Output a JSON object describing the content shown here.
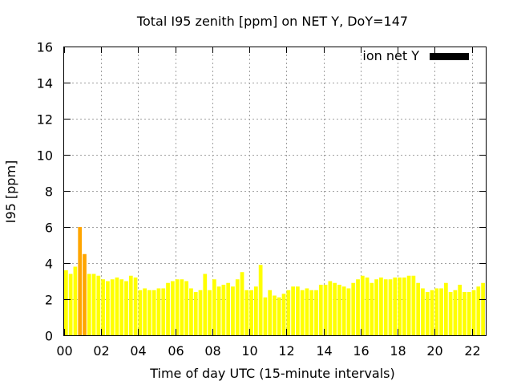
{
  "chart_data": {
    "type": "bar",
    "title": "Total I95 zenith [ppm] on NET Y, DoY=147",
    "xlabel": "Time of day UTC (15-minute intervals)",
    "ylabel": "I95 [ppm]",
    "xlim": [
      0,
      22.75
    ],
    "ylim": [
      0,
      16
    ],
    "x_ticks": [
      0,
      2,
      4,
      6,
      8,
      10,
      12,
      14,
      16,
      18,
      20,
      22
    ],
    "x_tick_labels": [
      "00",
      "02",
      "04",
      "06",
      "08",
      "10",
      "12",
      "14",
      "16",
      "18",
      "20",
      "22"
    ],
    "y_ticks": [
      0,
      2,
      4,
      6,
      8,
      10,
      12,
      14,
      16
    ],
    "y_tick_labels": [
      "0",
      "2",
      "4",
      "6",
      "8",
      "10",
      "12",
      "14",
      "16"
    ],
    "grid": true,
    "legend_position": "top-right",
    "legend": [
      {
        "label": "ion net Y",
        "color": "#000000"
      }
    ],
    "colors": {
      "normal": "#ffff00",
      "elevated": "#ffa500"
    },
    "threshold_elevated": 4.2,
    "interval_hours": 0.25,
    "values": [
      3.6,
      3.4,
      3.8,
      6.0,
      4.5,
      3.4,
      3.4,
      3.3,
      3.1,
      3.0,
      3.1,
      3.2,
      3.1,
      3.0,
      3.3,
      3.2,
      2.5,
      2.6,
      2.5,
      2.5,
      2.6,
      2.6,
      2.9,
      3.0,
      3.1,
      3.1,
      3.0,
      2.6,
      2.4,
      2.5,
      3.4,
      2.5,
      3.1,
      2.7,
      2.8,
      2.9,
      2.7,
      3.1,
      3.5,
      2.5,
      2.5,
      2.7,
      3.9,
      2.1,
      2.5,
      2.2,
      2.1,
      2.3,
      2.5,
      2.7,
      2.7,
      2.5,
      2.6,
      2.5,
      2.5,
      2.8,
      2.8,
      3.0,
      2.9,
      2.8,
      2.7,
      2.6,
      2.9,
      3.1,
      3.3,
      3.2,
      2.9,
      3.1,
      3.2,
      3.1,
      3.1,
      3.2,
      3.2,
      3.2,
      3.3,
      3.3,
      2.9,
      2.6,
      2.4,
      2.5,
      2.6,
      2.6,
      2.9,
      2.4,
      2.5,
      2.8,
      2.4,
      2.4,
      2.5,
      2.7,
      2.9
    ]
  }
}
